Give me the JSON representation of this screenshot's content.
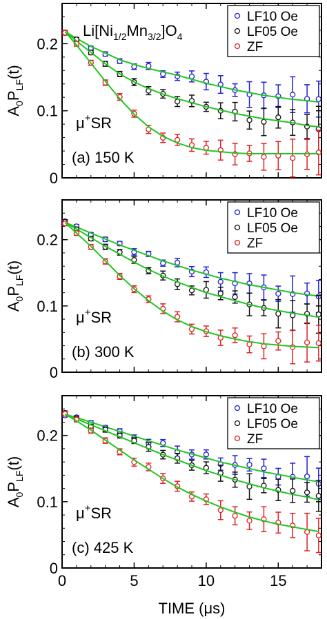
{
  "figure": {
    "xlabel": "TIME (μs)",
    "compound": {
      "prefix": "Li[Ni",
      "sub1": "1/2",
      "mid": "Mn",
      "sub2": "3/2",
      "close": "]O",
      "sub3": "4"
    },
    "ylabel": {
      "base": "A",
      "sub0": "0",
      "p": "P",
      "subLF": "LF",
      "tail": "(t)"
    },
    "musr": {
      "mu": "μ",
      "plus": "+",
      "sr": "SR"
    }
  },
  "colors": {
    "LF10": "#1f1fd0",
    "LF05": "#111111",
    "ZF": "#e02020",
    "fit": "#22c422"
  },
  "chart_data": [
    {
      "type": "scatter",
      "panel_label": "(a) 150 K",
      "xlabel": "TIME (μs)",
      "ylabel": "A0PLF(t)",
      "xlim": [
        0,
        18
      ],
      "ylim": [
        0,
        0.26
      ],
      "xticks": [
        0,
        5,
        10,
        15
      ],
      "yticks": [
        0,
        0.1,
        0.2
      ],
      "ytick_labels": [
        "0",
        "0.1",
        "0.2"
      ],
      "legend": "top-right",
      "fit_lines": true,
      "series": [
        {
          "name": "LF10 Oe",
          "color": "#1f1fd0",
          "a0": 0.218,
          "x": [
            0.2,
            1,
            2,
            3,
            4,
            5,
            6,
            7,
            8,
            9,
            10,
            11,
            12,
            13,
            14,
            15,
            16,
            17,
            17.8
          ],
          "y": [
            0.218,
            0.208,
            0.196,
            0.186,
            0.176,
            0.169,
            0.163,
            0.158,
            0.153,
            0.147,
            0.141,
            0.136,
            0.131,
            0.127,
            0.123,
            0.12,
            0.117,
            0.115,
            0.113
          ]
        },
        {
          "name": "LF05 Oe",
          "color": "#111111",
          "a0": 0.218,
          "x": [
            0.2,
            1,
            2,
            3,
            4,
            5,
            6,
            7,
            8,
            9,
            10,
            11,
            12,
            13,
            14,
            15,
            16,
            17,
            17.8
          ],
          "y": [
            0.218,
            0.204,
            0.187,
            0.17,
            0.155,
            0.143,
            0.133,
            0.125,
            0.118,
            0.112,
            0.106,
            0.101,
            0.096,
            0.092,
            0.088,
            0.085,
            0.082,
            0.078,
            0.076
          ]
        },
        {
          "name": "ZF",
          "color": "#e02020",
          "a0": 0.218,
          "x": [
            0.2,
            1,
            2,
            3,
            4,
            5,
            6,
            7,
            8,
            9,
            10,
            11,
            12,
            13,
            14,
            15,
            16,
            17,
            17.8
          ],
          "y": [
            0.218,
            0.198,
            0.171,
            0.144,
            0.118,
            0.095,
            0.076,
            0.062,
            0.052,
            0.045,
            0.041,
            0.039,
            0.037,
            0.036,
            0.036,
            0.036,
            0.036,
            0.036,
            0.036
          ]
        }
      ]
    },
    {
      "type": "scatter",
      "panel_label": "(b) 300 K",
      "xlabel": "TIME (μs)",
      "ylabel": "A0PLF(t)",
      "xlim": [
        0,
        18
      ],
      "ylim": [
        0,
        0.26
      ],
      "xticks": [
        0,
        5,
        10,
        15
      ],
      "yticks": [
        0,
        0.1,
        0.2
      ],
      "ytick_labels": [
        "0",
        "0.1",
        "0.2"
      ],
      "legend": "top-right",
      "fit_lines": true,
      "series": [
        {
          "name": "LF10 Oe",
          "color": "#1f1fd0",
          "a0": 0.226,
          "x": [
            0.2,
            1,
            2,
            3,
            4,
            5,
            6,
            7,
            8,
            9,
            10,
            11,
            12,
            13,
            14,
            15,
            16,
            17,
            17.8
          ],
          "y": [
            0.226,
            0.219,
            0.21,
            0.201,
            0.192,
            0.184,
            0.176,
            0.168,
            0.161,
            0.154,
            0.148,
            0.142,
            0.137,
            0.132,
            0.128,
            0.124,
            0.12,
            0.117,
            0.115
          ]
        },
        {
          "name": "LF05 Oe",
          "color": "#111111",
          "a0": 0.226,
          "x": [
            0.2,
            1,
            2,
            3,
            4,
            5,
            6,
            7,
            8,
            9,
            10,
            11,
            12,
            13,
            14,
            15,
            16,
            17,
            17.8
          ],
          "y": [
            0.226,
            0.216,
            0.203,
            0.19,
            0.178,
            0.166,
            0.155,
            0.145,
            0.136,
            0.128,
            0.12,
            0.114,
            0.108,
            0.102,
            0.097,
            0.093,
            0.089,
            0.086,
            0.083
          ]
        },
        {
          "name": "ZF",
          "color": "#e02020",
          "a0": 0.226,
          "x": [
            0.2,
            1,
            2,
            3,
            4,
            5,
            6,
            7,
            8,
            9,
            10,
            11,
            12,
            13,
            14,
            15,
            16,
            17,
            17.8
          ],
          "y": [
            0.226,
            0.21,
            0.19,
            0.168,
            0.146,
            0.126,
            0.108,
            0.092,
            0.079,
            0.069,
            0.061,
            0.055,
            0.05,
            0.046,
            0.043,
            0.041,
            0.039,
            0.038,
            0.037
          ]
        }
      ]
    },
    {
      "type": "scatter",
      "panel_label": "(c) 425 K",
      "xlabel": "TIME (μs)",
      "ylabel": "A0PLF(t)",
      "xlim": [
        0,
        18
      ],
      "ylim": [
        0,
        0.26
      ],
      "xticks": [
        0,
        5,
        10,
        15
      ],
      "yticks": [
        0,
        0.1,
        0.2
      ],
      "ytick_labels": [
        "0",
        "0.1",
        "0.2"
      ],
      "legend": "top-right",
      "fit_lines": true,
      "series": [
        {
          "name": "LF10 Oe",
          "color": "#1f1fd0",
          "a0": 0.232,
          "x": [
            0.2,
            1,
            2,
            3,
            4,
            5,
            6,
            7,
            8,
            9,
            10,
            11,
            12,
            13,
            14,
            15,
            16,
            17,
            17.8
          ],
          "y": [
            0.232,
            0.227,
            0.22,
            0.213,
            0.206,
            0.199,
            0.192,
            0.185,
            0.178,
            0.172,
            0.166,
            0.16,
            0.155,
            0.15,
            0.145,
            0.141,
            0.137,
            0.133,
            0.13
          ]
        },
        {
          "name": "LF05 Oe",
          "color": "#111111",
          "a0": 0.232,
          "x": [
            0.2,
            1,
            2,
            3,
            4,
            5,
            6,
            7,
            8,
            9,
            10,
            11,
            12,
            13,
            14,
            15,
            16,
            17,
            17.8
          ],
          "y": [
            0.232,
            0.225,
            0.216,
            0.207,
            0.198,
            0.189,
            0.18,
            0.171,
            0.163,
            0.155,
            0.147,
            0.14,
            0.133,
            0.127,
            0.121,
            0.116,
            0.111,
            0.107,
            0.103
          ]
        },
        {
          "name": "ZF",
          "color": "#e02020",
          "a0": 0.232,
          "x": [
            0.2,
            1,
            2,
            3,
            4,
            5,
            6,
            7,
            8,
            9,
            10,
            11,
            12,
            13,
            14,
            15,
            16,
            17,
            17.8
          ],
          "y": [
            0.232,
            0.222,
            0.208,
            0.193,
            0.178,
            0.163,
            0.149,
            0.135,
            0.122,
            0.111,
            0.101,
            0.092,
            0.084,
            0.077,
            0.071,
            0.066,
            0.062,
            0.058,
            0.055
          ]
        }
      ]
    }
  ]
}
